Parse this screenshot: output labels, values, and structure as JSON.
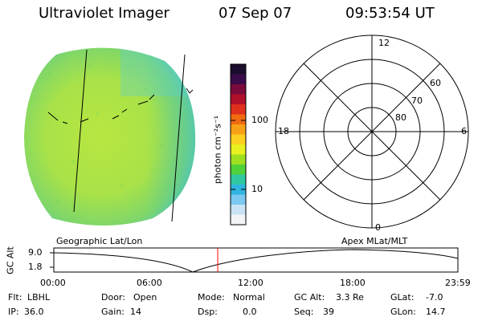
{
  "header": {
    "title": "Ultraviolet Imager",
    "date": "07 Sep 07",
    "time": "09:53:54 UT"
  },
  "colorbar": {
    "unit_label": "photon cm⁻²s⁻¹",
    "ticks": [
      "100",
      "10"
    ],
    "colors": [
      "#1a0d2e",
      "#3a0b4a",
      "#7a0a3c",
      "#b0102a",
      "#e0301c",
      "#f06a10",
      "#f7a018",
      "#fbd020",
      "#e8f020",
      "#9ee020",
      "#4fd23a",
      "#30c8a0",
      "#30b4e0",
      "#7cc8f0",
      "#c8e4f4",
      "#f2f4f6"
    ]
  },
  "polar_grid": {
    "mlt_labels": {
      "top": "12",
      "right": "6",
      "bottom": "0",
      "left": "18"
    },
    "lat_labels": [
      "60",
      "70",
      "80"
    ]
  },
  "altitude_plot": {
    "left_label": "Geographic Lat/Lon",
    "right_label": "Apex MLat/MLT",
    "axis_label": "GC Alt",
    "y_ticks": [
      "9.0",
      "1.8"
    ],
    "x_ticks": [
      "00:00",
      "06:00",
      "12:00",
      "18:00",
      "23:59"
    ],
    "marker_color": "#ff0000"
  },
  "status": {
    "flt_label": "Flt:",
    "flt_value": "LBHL",
    "ip_label": "IP:",
    "ip_value": "36.0",
    "door_label": "Door:",
    "door_value": "Open",
    "gain_label": "Gain:",
    "gain_value": "14",
    "mode_label": "Mode:",
    "mode_value": "Normal",
    "dsp_label": "Dsp:",
    "dsp_value": "0.0",
    "gcalt_label": "GC Alt:",
    "gcalt_value": "3.3 Re",
    "seq_label": "Seq:",
    "seq_value": "39",
    "glat_label": "GLat:",
    "glat_value": "-7.0",
    "glon_label": "GLon:",
    "glon_value": "14.7"
  }
}
